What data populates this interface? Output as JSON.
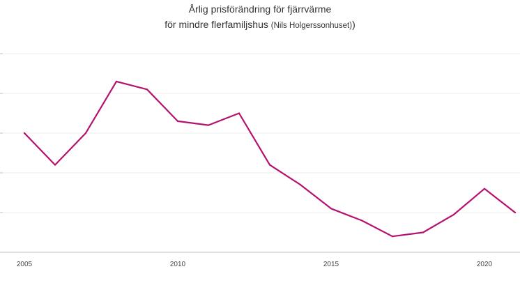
{
  "chart_data": {
    "type": "line",
    "title_line1": "Årlig prisförändring för fjärrvärme",
    "title_line2_main": "för mindre flerfamiljshus",
    "title_line2_paren": "(Nils Holgerssonhuset)",
    "title_line2_close": ")",
    "x": [
      2005,
      2006,
      2007,
      2008,
      2009,
      2010,
      2011,
      2012,
      2013,
      2014,
      2015,
      2016,
      2017,
      2018,
      2019,
      2020,
      2021
    ],
    "series": [
      {
        "color": "#b5126f",
        "values": [
          3.0,
          2.2,
          3.0,
          4.3,
          4.1,
          3.3,
          3.2,
          3.5,
          2.2,
          1.7,
          1.1,
          0.8,
          0.4,
          0.5,
          0.95,
          1.6,
          1.0
        ]
      }
    ],
    "xticks": [
      "2005",
      "2010",
      "2015",
      "2020"
    ],
    "xlim": [
      2004.9,
      2021.1
    ],
    "ylim": [
      0,
      5
    ],
    "grid": true,
    "xlabel": "",
    "ylabel": "",
    "colors": {
      "line": "#b5126f",
      "grid": "#ececec",
      "axis": "#bfbfbf"
    }
  }
}
